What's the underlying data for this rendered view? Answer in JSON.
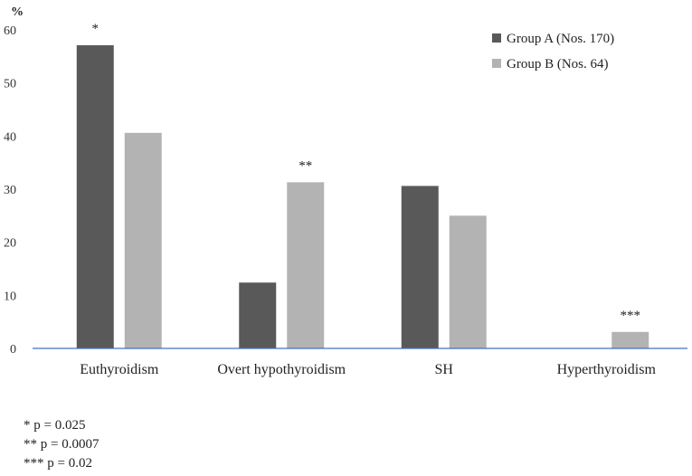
{
  "chart_data": {
    "type": "bar",
    "title": "",
    "xlabel": "",
    "ylabel": "%",
    "ylim": [
      0,
      60
    ],
    "yticks": [
      0,
      10,
      20,
      30,
      40,
      50,
      60
    ],
    "grid": false,
    "legend_position": "top-right",
    "categories": [
      "Euthyroidism",
      "Overt hypothyroidism",
      "SH",
      "Hyperthyroidism"
    ],
    "series": [
      {
        "name": "Group A (Nos. 170)",
        "color": "#595959",
        "values": [
          57.1,
          12.4,
          30.6,
          0
        ]
      },
      {
        "name": "Group B (Nos. 64)",
        "color": "#b3b3b3",
        "values": [
          40.6,
          31.3,
          25.0,
          3.1
        ]
      }
    ],
    "annotations": [
      {
        "text": "*",
        "category": 0,
        "series": 0
      },
      {
        "text": "**",
        "category": 1,
        "series": 1
      },
      {
        "text": "***",
        "category": 3,
        "series": 1
      }
    ],
    "axis_color": "#4472c4"
  },
  "footnotes": [
    "* p = 0.025",
    "** p = 0.0007",
    "*** p = 0.02"
  ]
}
